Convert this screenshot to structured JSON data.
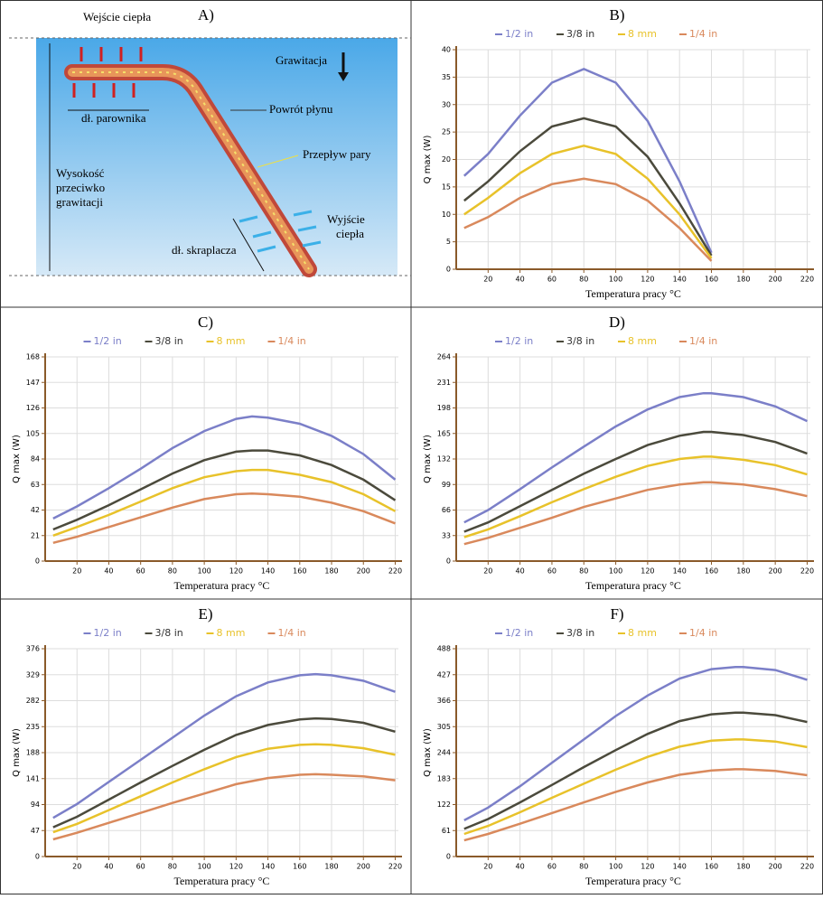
{
  "diagram": {
    "title": "A)",
    "heat_in": "Wejście ciepła",
    "gravity": "Grawitacja",
    "evaporator_length": "dł. parownika",
    "fluid_return": "Powrót płynu",
    "vapor_flow": "Przepływ pary",
    "height_label": [
      "Wysokość",
      "przeciwko",
      "grawitacji"
    ],
    "heat_out": [
      "Wyjście",
      "ciepła"
    ],
    "condenser_length": "dł. skraplacza"
  },
  "chart_data": [
    {
      "type": "line",
      "title": "B)",
      "xlabel": "Temperatura pracy °C",
      "ylabel": "Q max (W)",
      "xlim": [
        0,
        222
      ],
      "ylim": [
        0,
        40
      ],
      "xticks": [
        20,
        40,
        60,
        80,
        100,
        120,
        140,
        160,
        180,
        200,
        220
      ],
      "yticks": [
        0,
        5,
        10,
        15,
        20,
        25,
        30,
        35,
        40
      ],
      "grid": true,
      "x": [
        5,
        20,
        40,
        60,
        80,
        100,
        120,
        140,
        160
      ],
      "series": [
        {
          "name": "1/2 in",
          "color": "#7b7fc8",
          "values": [
            17,
            21,
            28,
            34,
            36.5,
            34,
            27,
            16,
            3
          ]
        },
        {
          "name": "3/8 in",
          "color": "#4b4a3c",
          "values": [
            12.5,
            16,
            21.5,
            26,
            27.5,
            26,
            20.5,
            12,
            2.5
          ]
        },
        {
          "name": "8 mm",
          "color": "#e8c22a",
          "values": [
            10,
            13,
            17.5,
            21,
            22.5,
            21,
            16.5,
            10,
            2
          ]
        },
        {
          "name": "1/4 in",
          "color": "#d9895c",
          "values": [
            7.5,
            9.5,
            13,
            15.5,
            16.5,
            15.5,
            12.5,
            7.5,
            1.5
          ]
        }
      ]
    },
    {
      "type": "line",
      "title": "C)",
      "xlabel": "Temperatura pracy °C",
      "ylabel": "Q max (W)",
      "xlim": [
        0,
        222
      ],
      "ylim": [
        0,
        168
      ],
      "xticks": [
        20,
        40,
        60,
        80,
        100,
        120,
        140,
        160,
        180,
        200,
        220
      ],
      "yticks": [
        0,
        21,
        42,
        63,
        84,
        105,
        126,
        147,
        168
      ],
      "grid": true,
      "x": [
        5,
        20,
        40,
        60,
        80,
        100,
        120,
        130,
        140,
        160,
        180,
        200,
        220
      ],
      "series": [
        {
          "name": "1/2 in",
          "color": "#7b7fc8",
          "values": [
            35,
            45,
            60,
            76,
            93,
            107,
            117,
            119,
            118,
            113,
            103,
            88,
            67
          ]
        },
        {
          "name": "3/8 in",
          "color": "#4b4a3c",
          "values": [
            26,
            34,
            46,
            59,
            72,
            83,
            90,
            91,
            91,
            87,
            79,
            67,
            50
          ]
        },
        {
          "name": "8 mm",
          "color": "#e8c22a",
          "values": [
            21,
            28,
            38,
            49,
            60,
            69,
            74,
            75,
            75,
            71,
            65,
            55,
            41
          ]
        },
        {
          "name": "1/4 in",
          "color": "#d9895c",
          "values": [
            15,
            20,
            28,
            36,
            44,
            51,
            55,
            55.5,
            55,
            53,
            48,
            41,
            31
          ]
        }
      ]
    },
    {
      "type": "line",
      "title": "D)",
      "xlabel": "Temperatura pracy °C",
      "ylabel": "Q max (W)",
      "xlim": [
        0,
        222
      ],
      "ylim": [
        0,
        264
      ],
      "xticks": [
        20,
        40,
        60,
        80,
        100,
        120,
        140,
        160,
        180,
        200,
        220
      ],
      "yticks": [
        0,
        33,
        66,
        99,
        132,
        165,
        198,
        231,
        264
      ],
      "grid": true,
      "x": [
        5,
        20,
        40,
        60,
        80,
        100,
        120,
        140,
        155,
        160,
        180,
        200,
        220
      ],
      "series": [
        {
          "name": "1/2 in",
          "color": "#7b7fc8",
          "values": [
            50,
            66,
            93,
            121,
            148,
            174,
            196,
            212,
            217,
            217,
            212,
            200,
            181
          ]
        },
        {
          "name": "3/8 in",
          "color": "#4b4a3c",
          "values": [
            38,
            50,
            71,
            92,
            113,
            132,
            150,
            162,
            167,
            167,
            163,
            154,
            139
          ]
        },
        {
          "name": "8 mm",
          "color": "#e8c22a",
          "values": [
            31,
            41,
            58,
            76,
            93,
            109,
            123,
            132,
            135,
            135,
            131,
            124,
            112
          ]
        },
        {
          "name": "1/4 in",
          "color": "#d9895c",
          "values": [
            22,
            30,
            43,
            56,
            70,
            81,
            92,
            99,
            102,
            102,
            99,
            93,
            84
          ]
        }
      ]
    },
    {
      "type": "line",
      "title": "E)",
      "xlabel": "Temperatura pracy °C",
      "ylabel": "Q max (W)",
      "xlim": [
        0,
        222
      ],
      "ylim": [
        0,
        376
      ],
      "xticks": [
        20,
        40,
        60,
        80,
        100,
        120,
        140,
        160,
        180,
        200,
        220
      ],
      "yticks": [
        0,
        47,
        94,
        141,
        188,
        235,
        282,
        329,
        376
      ],
      "grid": true,
      "x": [
        5,
        20,
        40,
        60,
        80,
        100,
        120,
        140,
        160,
        170,
        180,
        200,
        220
      ],
      "series": [
        {
          "name": "1/2 in",
          "color": "#7b7fc8",
          "values": [
            70,
            95,
            135,
            175,
            215,
            255,
            290,
            315,
            328,
            330,
            328,
            318,
            298
          ]
        },
        {
          "name": "3/8 in",
          "color": "#4b4a3c",
          "values": [
            53,
            72,
            103,
            134,
            164,
            193,
            220,
            238,
            248,
            250,
            249,
            242,
            226
          ]
        },
        {
          "name": "8 mm",
          "color": "#e8c22a",
          "values": [
            44,
            59,
            84,
            109,
            134,
            158,
            180,
            195,
            202,
            203,
            202,
            196,
            184
          ]
        },
        {
          "name": "1/4 in",
          "color": "#d9895c",
          "values": [
            31,
            43,
            61,
            79,
            97,
            114,
            131,
            142,
            148,
            149,
            148,
            145,
            138
          ]
        }
      ]
    },
    {
      "type": "line",
      "title": "F)",
      "xlabel": "Temperatura pracy °C",
      "ylabel": "Q max (W)",
      "xlim": [
        0,
        222
      ],
      "ylim": [
        0,
        488
      ],
      "xticks": [
        20,
        40,
        60,
        80,
        100,
        120,
        140,
        160,
        180,
        200,
        220
      ],
      "yticks": [
        0,
        61,
        122,
        183,
        244,
        305,
        366,
        427,
        488
      ],
      "grid": true,
      "x": [
        5,
        20,
        40,
        60,
        80,
        100,
        120,
        140,
        160,
        175,
        180,
        200,
        220
      ],
      "series": [
        {
          "name": "1/2 in",
          "color": "#7b7fc8",
          "values": [
            85,
            115,
            165,
            220,
            275,
            330,
            378,
            418,
            440,
            445,
            445,
            438,
            415
          ]
        },
        {
          "name": "3/8 in",
          "color": "#4b4a3c",
          "values": [
            65,
            88,
            127,
            168,
            210,
            250,
            288,
            318,
            334,
            338,
            338,
            332,
            316
          ]
        },
        {
          "name": "8 mm",
          "color": "#e8c22a",
          "values": [
            53,
            72,
            104,
            138,
            171,
            204,
            234,
            258,
            272,
            275,
            275,
            270,
            257
          ]
        },
        {
          "name": "1/4 in",
          "color": "#d9895c",
          "values": [
            38,
            53,
            77,
            102,
            127,
            152,
            174,
            192,
            202,
            205,
            205,
            201,
            191
          ]
        }
      ]
    }
  ]
}
